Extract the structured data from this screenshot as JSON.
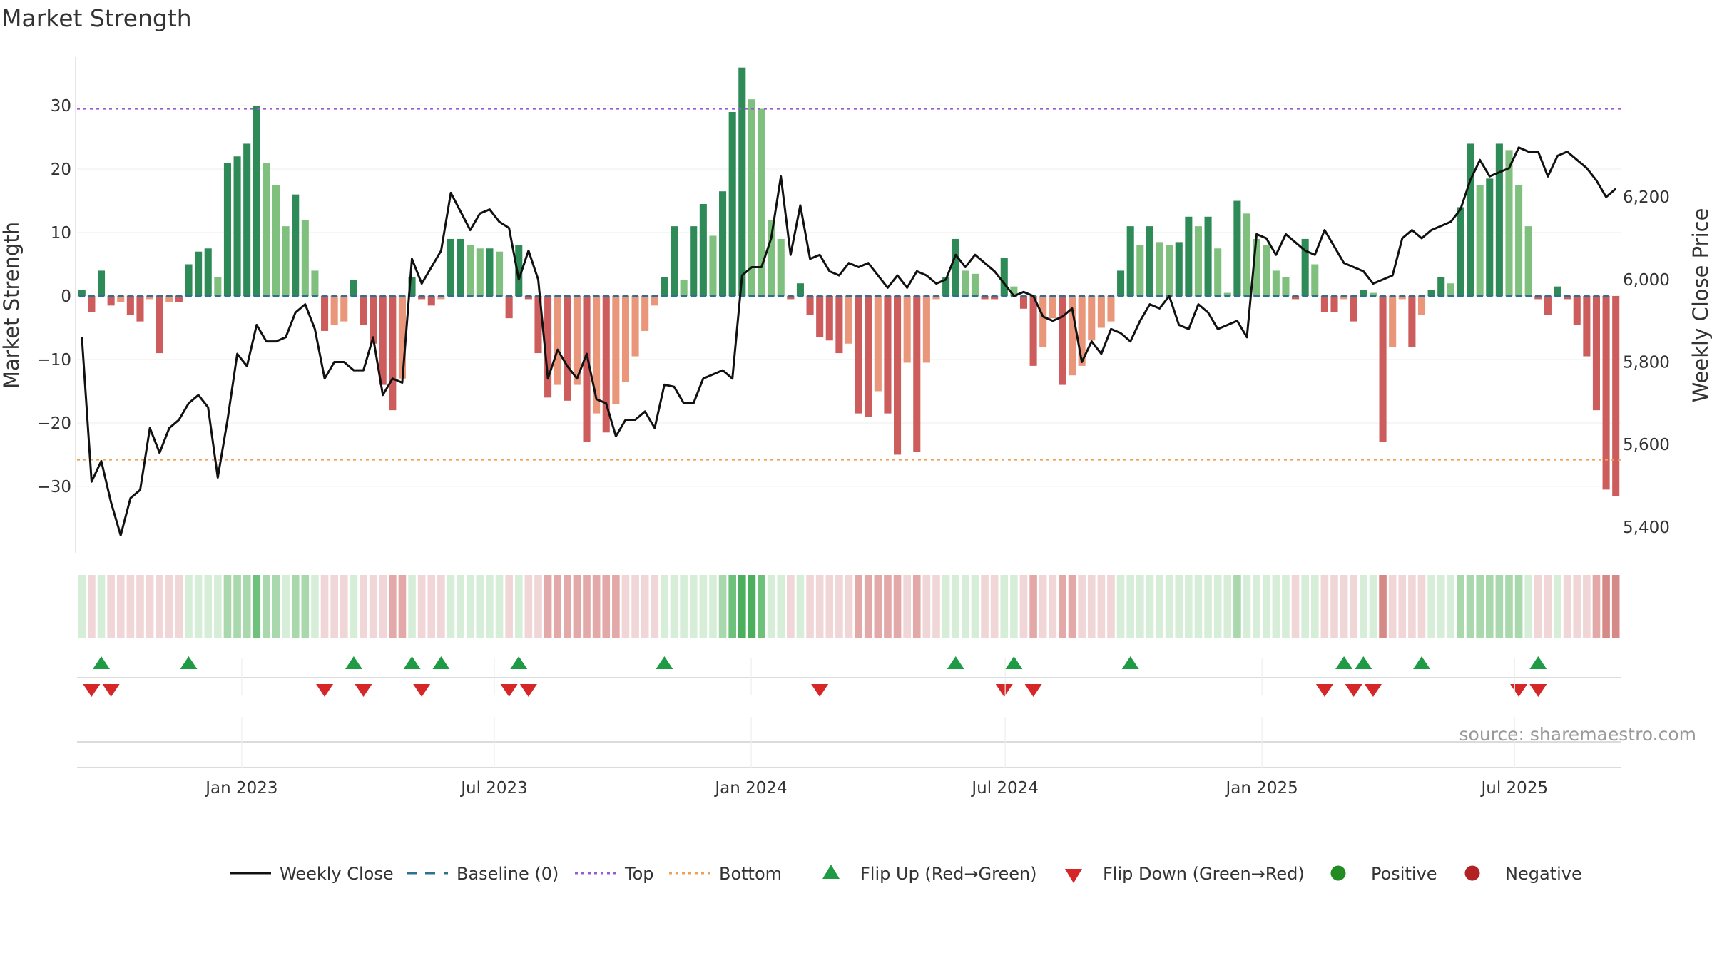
{
  "title": "Market Strength",
  "chart_data": {
    "type": "bar",
    "title": "Market Strength",
    "ylabel": "Market Strength",
    "ylabel_right": "Weekly Close Price",
    "ylim": [
      -39,
      39
    ],
    "ylim_right": [
      5360,
      6560
    ],
    "yticks": [
      30,
      20,
      10,
      0,
      -10,
      -20,
      -30
    ],
    "yticks_labels": [
      "30",
      "20",
      "10",
      "0",
      "−10",
      "−20",
      "−30"
    ],
    "yticks_right": [
      6200,
      6000,
      5800,
      5600,
      5400
    ],
    "yticks_right_labels": [
      "6,200",
      "6,000",
      "5,800",
      "5,600",
      "5,400"
    ],
    "top_level": 29.5,
    "bottom_level": -25.8,
    "baseline": 0,
    "x_start": "2022-09-05",
    "x_end": "2025-09-15",
    "xticks": [
      {
        "date": "2023-01-01",
        "label": "Jan 2023"
      },
      {
        "date": "2023-07-01",
        "label": "Jul 2023"
      },
      {
        "date": "2024-01-01",
        "label": "Jan 2024"
      },
      {
        "date": "2024-07-01",
        "label": "Jul 2024"
      },
      {
        "date": "2025-01-01",
        "label": "Jan 2025"
      },
      {
        "date": "2025-07-01",
        "label": "Jul 2025"
      }
    ],
    "strength": [
      1,
      -2.5,
      4,
      -1.5,
      -1,
      -3,
      -4,
      -0.5,
      -9,
      -1,
      -1,
      5,
      7,
      7.5,
      3,
      21,
      22,
      24,
      30,
      21,
      17.5,
      11,
      16,
      12,
      4,
      -5.5,
      -4.5,
      -4,
      2.5,
      -4.5,
      -7.5,
      -14,
      -18,
      -13,
      3,
      -0.5,
      -1.5,
      -0.5,
      9,
      9,
      8,
      7.5,
      7.5,
      7,
      -3.5,
      8,
      -0.5,
      -9,
      -16,
      -14,
      -16.5,
      -14,
      -23,
      -18.5,
      -21.5,
      -17,
      -13.5,
      -9.5,
      -5.5,
      -1.5,
      3,
      11,
      2.5,
      11,
      14.5,
      9.5,
      16.5,
      29,
      36,
      31,
      29.5,
      12,
      9,
      -0.5,
      2,
      -3,
      -6.5,
      -7,
      -9,
      -7.5,
      -18.5,
      -19,
      -15,
      -18.5,
      -25,
      -10.5,
      -24.5,
      -10.5,
      -0.5,
      3,
      9,
      4,
      3.5,
      -0.5,
      -0.5,
      6,
      1.5,
      -2,
      -11,
      -8,
      -3.5,
      -14,
      -12.5,
      -11,
      -7,
      -5,
      -4,
      4,
      11,
      8,
      11,
      8.5,
      8,
      8.5,
      12.5,
      11,
      12.5,
      7.5,
      0.5,
      15,
      13,
      9,
      8,
      4,
      3,
      -0.5,
      9,
      5,
      -2.5,
      -2.5,
      -0.5,
      -4,
      1,
      0.5,
      -23,
      -8,
      -0.5,
      -8,
      -3,
      1,
      3,
      2,
      14,
      24,
      17.5,
      18.5,
      24,
      23,
      17.5,
      11,
      -0.5,
      -3,
      1.5,
      -0.5,
      -4.5,
      -9.5,
      -18,
      -30.5,
      -31.5
    ],
    "close": [
      5860,
      5510,
      5560,
      5460,
      5380,
      5470,
      5490,
      5640,
      5580,
      5640,
      5660,
      5700,
      5720,
      5690,
      5520,
      5660,
      5820,
      5790,
      5890,
      5850,
      5850,
      5860,
      5920,
      5940,
      5880,
      5760,
      5800,
      5800,
      5780,
      5780,
      5860,
      5720,
      5760,
      5750,
      6050,
      5990,
      6030,
      6070,
      6210,
      6120,
      6160,
      6170,
      6140,
      6125,
      6000,
      6070,
      6000,
      5760,
      5830,
      5790,
      5760,
      5820,
      5710,
      5700,
      5620,
      5660,
      5660,
      5680,
      5640,
      5745,
      5740,
      5700,
      5700,
      5760,
      5770,
      5780,
      5760,
      6010,
      6030,
      6030,
      6100,
      6250,
      6060,
      6180,
      6050,
      6060,
      6020,
      6010,
      6040,
      6030,
      6040,
      6010,
      5980,
      6010,
      5980,
      6020,
      6010,
      5990,
      6000,
      6060,
      6030,
      6060,
      6040,
      6020,
      5990,
      5960,
      5970,
      5960,
      5910,
      5900,
      5910,
      5930,
      5800,
      5850,
      5820,
      5880,
      5870,
      5850,
      5900,
      5940,
      5930,
      5960,
      5890,
      5880,
      5940,
      5920,
      5880,
      5900,
      5860,
      6110,
      6100,
      6060,
      6110,
      6090,
      6070,
      6060,
      6120,
      6080,
      6040,
      6030,
      6020,
      5990,
      6000,
      6010,
      6100,
      6120,
      6100,
      6120,
      6130,
      6140,
      6170,
      6240,
      6290,
      6250,
      6260,
      6270,
      6320,
      6310,
      6310,
      6250,
      6300,
      6310,
      6290,
      6270,
      6240,
      6200,
      6220
    ],
    "regime": [
      1,
      1,
      1,
      1,
      1,
      1,
      1,
      1,
      1,
      1,
      1,
      1,
      1,
      1,
      1,
      1,
      1,
      1,
      1,
      1,
      1,
      1,
      1,
      1,
      1,
      1,
      1,
      1,
      1,
      1,
      1,
      1,
      1,
      1,
      1,
      1,
      1,
      1,
      1,
      1,
      1,
      1,
      1,
      1,
      1,
      1,
      1,
      1,
      1,
      1,
      1,
      1,
      1,
      1,
      1,
      1,
      1,
      1,
      1,
      1,
      1,
      1,
      1,
      1,
      1,
      1,
      1,
      1,
      1,
      1,
      1,
      1,
      1,
      1,
      1,
      1,
      1,
      1,
      1,
      1,
      1,
      1,
      1,
      1,
      1,
      1,
      1,
      1,
      1,
      1,
      1,
      1,
      1,
      1,
      1,
      1,
      1,
      1,
      1,
      1,
      1,
      1,
      1,
      1,
      1,
      1,
      1,
      1,
      1,
      1,
      1,
      1,
      1,
      1,
      1,
      1,
      1,
      1,
      1,
      1,
      1,
      1,
      1,
      1,
      1,
      1,
      1,
      1,
      1,
      1,
      1,
      1,
      1,
      1,
      1,
      1,
      1,
      1,
      1,
      1,
      1,
      1,
      1,
      1,
      1,
      1,
      1,
      1,
      1,
      1,
      1,
      1,
      1,
      1,
      1,
      1,
      1,
      1
    ],
    "heat_strip": [
      1,
      -1,
      1,
      -1,
      -1,
      -1,
      -1,
      -1,
      -1,
      -1,
      -1,
      1,
      1,
      1,
      1,
      2,
      2,
      2,
      3,
      2,
      2,
      1,
      2,
      2,
      1,
      -1,
      -1,
      -1,
      1,
      -1,
      -1,
      -1,
      -2,
      -2,
      1,
      -1,
      -1,
      -1,
      1,
      1,
      1,
      1,
      1,
      1,
      -1,
      1,
      -1,
      -1,
      -2,
      -2,
      -2,
      -2,
      -2,
      -2,
      -2,
      -2,
      -1,
      -1,
      -1,
      -1,
      1,
      1,
      1,
      1,
      1,
      1,
      2,
      3,
      4,
      4,
      3,
      1,
      1,
      -1,
      1,
      -1,
      -1,
      -1,
      -1,
      -1,
      -2,
      -2,
      -2,
      -2,
      -2,
      -1,
      -2,
      -1,
      -1,
      1,
      1,
      1,
      1,
      -1,
      -1,
      1,
      1,
      -1,
      -2,
      -1,
      -1,
      -2,
      -2,
      -1,
      -1,
      -1,
      -1,
      1,
      1,
      1,
      1,
      1,
      1,
      1,
      1,
      1,
      1,
      1,
      1,
      2,
      1,
      1,
      1,
      1,
      1,
      -1,
      1,
      1,
      -1,
      -1,
      -1,
      -1,
      1,
      1,
      -3,
      -1,
      -1,
      -1,
      -1,
      1,
      1,
      1,
      2,
      2,
      2,
      2,
      2,
      2,
      2,
      1,
      -1,
      -1,
      1,
      -1,
      -1,
      -1,
      -2,
      -3,
      -3
    ],
    "flips_up": [
      2,
      11,
      28,
      34,
      37,
      45,
      60,
      90,
      96,
      108,
      130,
      132,
      138,
      150
    ],
    "flips_down": [
      1,
      3,
      25,
      29,
      35,
      44,
      46,
      76,
      95,
      98,
      128,
      131,
      133,
      148,
      150
    ],
    "source": "source: sharemaestro.com",
    "legend": [
      {
        "label": "Weekly Close",
        "kind": "line",
        "color": "#111111"
      },
      {
        "label": "Baseline (0)",
        "kind": "dash",
        "color": "#2f6f8f"
      },
      {
        "label": "Top",
        "kind": "dot",
        "color": "#9b59d0"
      },
      {
        "label": "Bottom",
        "kind": "dot",
        "color": "#f0a050"
      },
      {
        "label": "Flip Up (Red→Green)",
        "kind": "tri-up",
        "color": "#1f9a45"
      },
      {
        "label": "Flip Down (Green→Red)",
        "kind": "tri-down",
        "color": "#d62728"
      },
      {
        "label": "Positive",
        "kind": "circle",
        "color": "#228b22"
      },
      {
        "label": "Negative",
        "kind": "circle",
        "color": "#b22222"
      }
    ],
    "legend_position": "bottom-center"
  },
  "colors": {
    "pos_strong": "#2e8b57",
    "pos_light": "#7fc07f",
    "neg_strong": "#cd5c5c",
    "neg_light": "#e9967a",
    "top_line": "#9b59d0",
    "bottom_line": "#f0a050",
    "baseline": "#2f6f8f",
    "close_line": "#111111"
  }
}
